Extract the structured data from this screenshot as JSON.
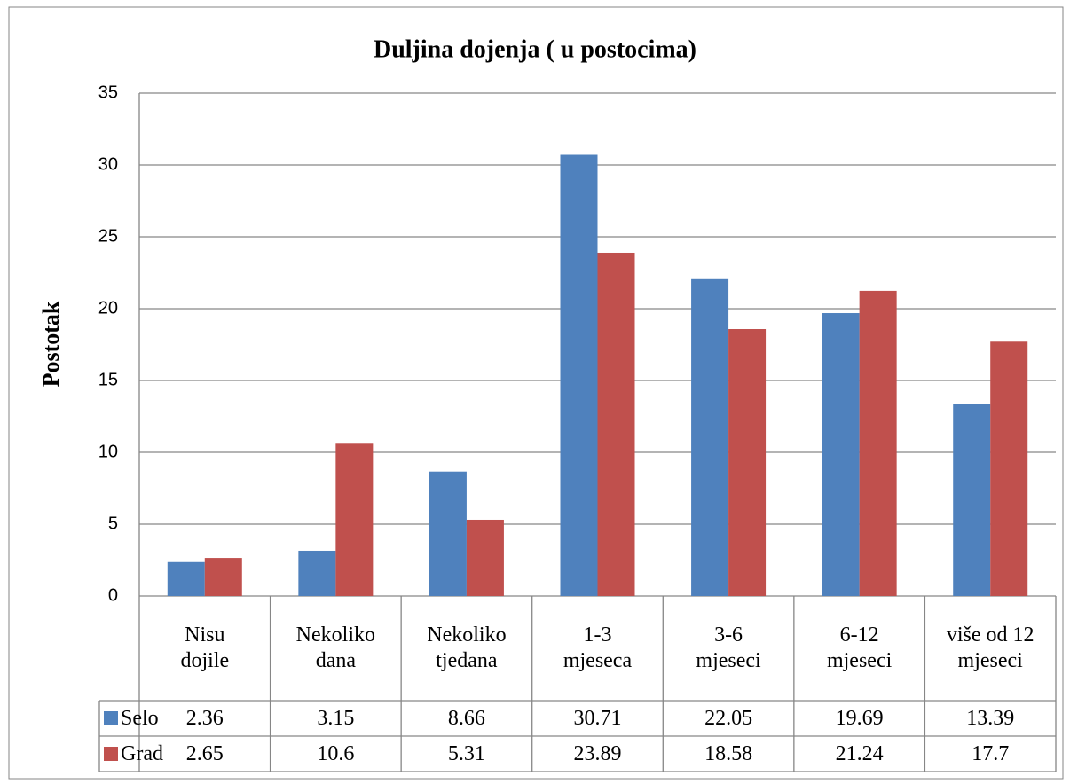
{
  "chart_data": {
    "type": "bar",
    "title": "Duljina dojenja ( u postocima)",
    "y_label": "Postotak",
    "categories": [
      "Nisu dojile",
      "Nekoliko dana",
      "Nekoliko tjedana",
      "1-3 mjeseca",
      "3-6 mjeseci",
      "6-12 mjeseci",
      "više od 12 mjeseci"
    ],
    "series": [
      {
        "name": "Selo",
        "color": "#4f81bd",
        "values": [
          2.36,
          3.15,
          8.66,
          30.71,
          22.05,
          19.69,
          13.39
        ]
      },
      {
        "name": "Grad",
        "color": "#c0504d",
        "values": [
          2.65,
          10.6,
          5.31,
          23.89,
          18.58,
          21.24,
          17.7
        ]
      }
    ],
    "ylim": [
      0,
      35
    ],
    "yticks": [
      0,
      5,
      10,
      15,
      20,
      25,
      30,
      35
    ],
    "grid": true
  }
}
